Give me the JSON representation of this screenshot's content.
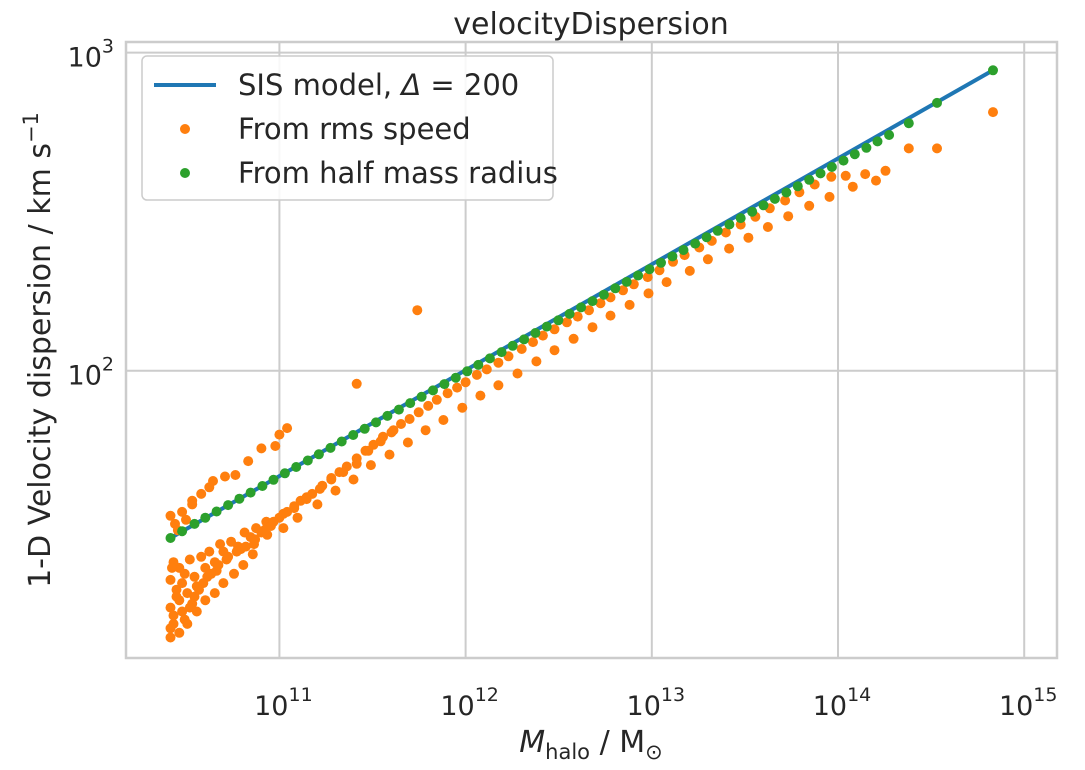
{
  "chart_data": {
    "type": "scatter",
    "title": "velocityDispersion",
    "xlabel": {
      "symbol": "M",
      "subscript": "halo",
      "unit": " / M",
      "unit_sub": "⊙"
    },
    "ylabel": {
      "text": "1-D Velocity dispersion / km s",
      "sup": "−1"
    },
    "xscale": "log",
    "yscale": "log",
    "xlim": [
      15000000000.0,
      1500000000000000.0
    ],
    "ylim": [
      12.5,
      1080
    ],
    "grid": true,
    "legend_position": "top-left",
    "x_ticks": [
      {
        "value": 100000000000.0,
        "base": "10",
        "exp": "11"
      },
      {
        "value": 1000000000000.0,
        "base": "10",
        "exp": "12"
      },
      {
        "value": 10000000000000.0,
        "base": "10",
        "exp": "13"
      },
      {
        "value": 100000000000000.0,
        "base": "10",
        "exp": "14"
      },
      {
        "value": 1000000000000000.0,
        "base": "10",
        "exp": "15"
      }
    ],
    "y_ticks": [
      {
        "value": 100,
        "base": "10",
        "exp": "2"
      },
      {
        "value": 1000,
        "base": "10",
        "exp": "3"
      }
    ],
    "series": [
      {
        "name": "SIS model, Δ = 200",
        "legend": {
          "prefix": "SIS model, ",
          "symbol": "Δ",
          "suffix": " = 200"
        },
        "kind": "line",
        "color": "#1f77b4",
        "x": [
          26000000000.0,
          680000000000000.0
        ],
        "y": [
          29.8,
          880
        ]
      },
      {
        "name": "From rms speed",
        "kind": "scatter",
        "color": "#ff7f0e",
        "x": [
          26000000000.0,
          26000000000.0,
          27000000000.0,
          28000000000.0,
          29000000000.0,
          30000000000.0,
          31000000000.0,
          33000000000.0,
          35000000000.0,
          38000000000.0,
          40000000000.0,
          42000000000.0,
          45000000000.0,
          48000000000.0,
          50000000000.0,
          55000000000.0,
          60000000000.0,
          65000000000.0,
          70000000000.0,
          75000000000.0,
          80000000000.0,
          85000000000.0,
          90000000000.0,
          100000000000.0,
          110000000000.0,
          120000000000.0,
          130000000000.0,
          140000000000.0,
          150000000000.0,
          170000000000.0,
          190000000000.0,
          210000000000.0,
          230000000000.0,
          260000000000.0,
          290000000000.0,
          320000000000.0,
          360000000000.0,
          400000000000.0,
          450000000000.0,
          500000000000.0,
          560000000000.0,
          630000000000.0,
          700000000000.0,
          800000000000.0,
          900000000000.0,
          1000000000000.0,
          1150000000000.0,
          1300000000000.0,
          1500000000000.0,
          1700000000000.0,
          2000000000000.0,
          2300000000000.0,
          2600000000000.0,
          3000000000000.0,
          3500000000000.0,
          4000000000000.0,
          4600000000000.0,
          5300000000000.0,
          6000000000000.0,
          7000000000000.0,
          8000000000000.0,
          9500000000000.0,
          11000000000000.0,
          13000000000000.0,
          15000000000000.0,
          18000000000000.0,
          21000000000000.0,
          25000000000000.0,
          30000000000000.0,
          36000000000000.0,
          43000000000000.0,
          52000000000000.0,
          62000000000000.0,
          75000000000000.0,
          92000000000000.0,
          110000000000000.0,
          140000000000000.0,
          180000000000000.0,
          240000000000000.0,
          340000000000000.0,
          680000000000000.0,
          27000000000.0,
          28000000000.0,
          30000000000.0,
          32000000000.0,
          34000000000.0,
          36000000000.0,
          41000000000.0,
          46000000000.0,
          52000000000.0,
          62000000000.0,
          73000000000.0,
          86000000000.0,
          105000000000.0,
          125000000000.0,
          160000000000.0,
          200000000000.0,
          250000000000.0,
          310000000000.0,
          390000000000.0,
          490000000000.0,
          610000000000.0,
          760000000000.0,
          960000000000.0,
          1200000000000.0,
          1500000000000.0,
          1900000000000.0,
          2400000000000.0,
          3000000000000.0,
          3800000000000.0,
          4800000000000.0,
          6000000000000.0,
          7600000000000.0,
          9600000000000.0,
          12000000000000.0,
          16000000000000.0,
          20000000000000.0,
          26000000000000.0,
          33000000000000.0,
          42000000000000.0,
          54000000000000.0,
          70000000000000.0,
          90000000000000.0,
          120000000000000.0,
          160000000000000.0,
          26000000000.0,
          27000000000.0,
          29000000000.0,
          31000000000.0,
          33000000000.0,
          35000000000.0,
          37000000000.0,
          39000000000.0,
          43000000000.0,
          47000000000.0,
          53000000000.0,
          59000000000.0,
          66000000000.0,
          74000000000.0,
          83000000000.0,
          93000000000.0,
          105000000000.0,
          120000000000.0,
          140000000000.0,
          165000000000.0,
          190000000000.0,
          220000000000.0,
          260000000000.0,
          300000000000.0,
          350000000000.0,
          410000000000.0,
          26000000000.0,
          27500000000.0,
          28500000000.0,
          30000000000.0,
          31500000000.0,
          34000000000.0,
          38000000000.0,
          44000000000.0,
          51000000000.0,
          58000000000.0,
          68000000000.0,
          80000000000.0,
          95000000000.0,
          550000000000.0,
          260000000000.0,
          100000000000.0,
          110000000000.0,
          42000000000.0,
          34000000000.0,
          26000000000.0,
          26500000000.0,
          29000000000.0,
          32000000000.0,
          36000000000.0,
          40000000000.0,
          45000000000.0,
          50000000000.0,
          57000000000.0,
          64000000000.0,
          72000000000.0
        ],
        "y": [
          22.0,
          18.0,
          25.0,
          20.5,
          24.0,
          21.5,
          23.0,
          25.5,
          22.5,
          26.0,
          24.0,
          27.0,
          25.0,
          28.5,
          27.0,
          29.0,
          28.0,
          31.0,
          30.0,
          32.0,
          31.0,
          33.5,
          32.5,
          34.5,
          36.0,
          37.5,
          39.0,
          40.0,
          41.0,
          43.5,
          46.0,
          48.0,
          50.0,
          53.0,
          56.0,
          58.5,
          62.0,
          64.0,
          68.0,
          70.5,
          74.0,
          77.5,
          81.0,
          85.0,
          88.5,
          92.0,
          97.0,
          101.0,
          106.0,
          111.0,
          117.0,
          123.0,
          129.0,
          135.0,
          142.0,
          148.0,
          155.0,
          163.0,
          170.0,
          179.0,
          187.0,
          197.0,
          207.0,
          220.0,
          231.0,
          244.0,
          256.0,
          272.0,
          288.0,
          305.0,
          324.0,
          343.0,
          364.0,
          385.0,
          407.0,
          410.0,
          415.0,
          425.0,
          500.0,
          500.0,
          650.0,
          16.0,
          19.5,
          17.5,
          20.0,
          18.5,
          21.0,
          22.5,
          23.5,
          25.5,
          27.5,
          28.5,
          30.5,
          32.0,
          34.5,
          38.0,
          42.0,
          45.5,
          50.5,
          54.5,
          59.5,
          65.0,
          70.0,
          76.5,
          83.5,
          90.0,
          98.0,
          107.0,
          116.0,
          126.0,
          137.0,
          149.0,
          161.0,
          175.0,
          190.0,
          206.0,
          224.0,
          242.0,
          262.0,
          283.0,
          306.0,
          330.0,
          352.0,
          379.0,
          396.0,
          15.5,
          17.0,
          19.0,
          16.5,
          18.0,
          19.5,
          20.5,
          21.5,
          23.0,
          24.5,
          26.0,
          27.0,
          28.0,
          29.5,
          31.5,
          33.5,
          35.5,
          37.0,
          39.5,
          42.5,
          45.5,
          48.0,
          51.0,
          56.0,
          60.0,
          65.0,
          35.0,
          33.0,
          31.5,
          36.0,
          34.0,
          38.0,
          41.0,
          45.0,
          46.5,
          47.0,
          52.0,
          57.0,
          58.0,
          155.0,
          91.0,
          63.0,
          66.0,
          43.0,
          39.0,
          14.5,
          24.0,
          15.0,
          16.0,
          17.5,
          19.0,
          20.0,
          21.5,
          23.0,
          24.5,
          26.5
        ]
      },
      {
        "name": "From half mass radius",
        "kind": "scatter",
        "color": "#2ca02c",
        "x": [
          26000000000.0,
          30000000000.0,
          35000000000.0,
          40000000000.0,
          46000000000.0,
          53000000000.0,
          61000000000.0,
          70000000000.0,
          81000000000.0,
          93000000000.0,
          107000000000.0,
          123000000000.0,
          142000000000.0,
          163000000000.0,
          188000000000.0,
          216000000000.0,
          249000000000.0,
          287000000000.0,
          330000000000.0,
          380000000000.0,
          438000000000.0,
          504000000000.0,
          580000000000.0,
          668000000000.0,
          769000000000.0,
          886000000000.0,
          1020000000000.0,
          1170000000000.0,
          1350000000000.0,
          1560000000000.0,
          1790000000000.0,
          2060000000000.0,
          2370000000000.0,
          2730000000000.0,
          3150000000000.0,
          3620000000000.0,
          4170000000000.0,
          4800000000000.0,
          5530000000000.0,
          6370000000000.0,
          7330000000000.0,
          8440000000000.0,
          9720000000000.0,
          11200000000000.0,
          12900000000000.0,
          14800000000000.0,
          17100000000000.0,
          19700000000000.0,
          22600000000000.0,
          26100000000000.0,
          30000000000000.0,
          34600000000000.0,
          39800000000000.0,
          45800000000000.0,
          52800000000000.0,
          60800000000000.0,
          70000000000000.0,
          80500000000000.0,
          92700000000000.0,
          107000000000000.0,
          123000000000000.0,
          142000000000000.0,
          163000000000000.0,
          188000000000000.0,
          240000000000000.0,
          340000000000000.0,
          680000000000000.0
        ],
        "y": [
          29.8,
          31.3,
          33.0,
          34.5,
          36.1,
          37.8,
          39.6,
          41.4,
          43.4,
          45.4,
          47.6,
          49.8,
          52.2,
          54.6,
          57.2,
          59.9,
          62.8,
          65.7,
          68.8,
          72.1,
          75.5,
          79.1,
          82.8,
          86.7,
          90.8,
          95.1,
          99.6,
          104.3,
          109.3,
          114.4,
          119.8,
          125.5,
          131.4,
          137.6,
          144.1,
          150.9,
          158.1,
          165.5,
          173.4,
          181.6,
          190.2,
          199.2,
          208.6,
          218.5,
          228.8,
          239.6,
          251.0,
          262.8,
          275.3,
          288.3,
          301.9,
          316.2,
          331.2,
          346.8,
          363.3,
          380.4,
          398.4,
          417.3,
          437.0,
          457.7,
          479.3,
          502.0,
          525.8,
          550.7,
          600.0,
          695.0,
          880.0
        ]
      }
    ]
  }
}
